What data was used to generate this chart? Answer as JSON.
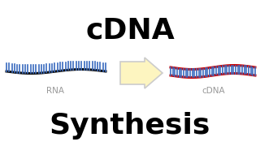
{
  "title_top": "cDNA",
  "title_bottom": "Synthesis",
  "label_rna": "RNA",
  "label_cdna": "cDNA",
  "bg_color": "#ffffff",
  "title_color": "#000000",
  "label_color": "#999999",
  "rna_backbone_color": "#111111",
  "rna_teeth_color": "#3a6bbf",
  "dna_strand_color": "#cc0000",
  "dna_teeth_color": "#3a6bbf",
  "arrow_face_color": "#fdf5c0",
  "arrow_edge_color": "#cccccc",
  "font_size_title": 26,
  "font_size_label": 7.5
}
